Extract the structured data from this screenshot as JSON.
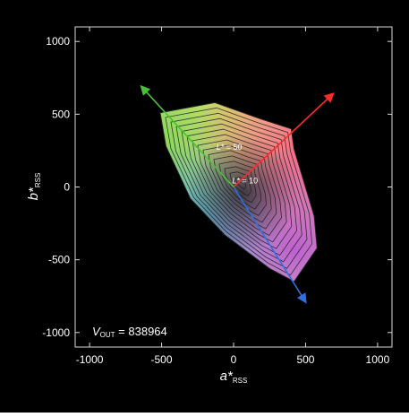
{
  "chart_data": {
    "type": "line",
    "xlabel": {
      "main": "a*",
      "sub": "RSS"
    },
    "ylabel": {
      "main": "b*",
      "sub": "RSS"
    },
    "xlim": [
      -1100,
      1100
    ],
    "ylim": [
      -1100,
      1100
    ],
    "x_ticks": [
      "-1000",
      "-500",
      "0",
      "500",
      "1000"
    ],
    "y_ticks": [
      "1000",
      "500",
      "0",
      "-500",
      "-1000"
    ],
    "x_tick_values": [
      -1000,
      -500,
      0,
      500,
      1000
    ],
    "y_tick_values": [
      1000,
      500,
      0,
      -500,
      -1000
    ],
    "grid": false,
    "boundary": [
      {
        "a": -130,
        "b": 580
      },
      {
        "a": 180,
        "b": 470
      },
      {
        "a": 400,
        "b": 400
      },
      {
        "a": 420,
        "b": 260
      },
      {
        "a": 560,
        "b": -200
      },
      {
        "a": 580,
        "b": -420
      },
      {
        "a": 420,
        "b": -650
      },
      {
        "a": 250,
        "b": -560
      },
      {
        "a": -60,
        "b": -330
      },
      {
        "a": -300,
        "b": -80
      },
      {
        "a": -470,
        "b": 280
      },
      {
        "a": -510,
        "b": 510
      }
    ],
    "contour_center": {
      "a": 50,
      "b": 30
    },
    "contour_levels": 14,
    "vectors": [
      {
        "color": "#ff2a2a",
        "to": {
          "a": 690,
          "b": 640
        }
      },
      {
        "color": "#4bbf3a",
        "to": {
          "a": -640,
          "b": 690
        }
      },
      {
        "color": "#2f6fe0",
        "to": {
          "a": 500,
          "b": -790
        }
      }
    ],
    "annotations": [
      {
        "main": "L*",
        "rest": " = 50",
        "a": -120,
        "b": 255
      },
      {
        "main": "L*",
        "rest": " = 10",
        "a": -10,
        "b": 25
      }
    ],
    "inset": {
      "main": "V",
      "sub": "OUT",
      "rest": " = 838964"
    }
  }
}
